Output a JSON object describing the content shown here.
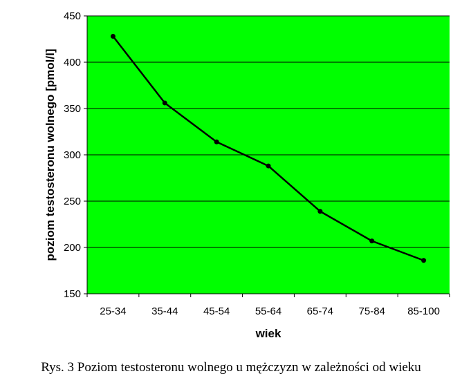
{
  "caption": "Rys. 3 Poziom testosteronu wolnego u mężczyzn w zależności od wieku",
  "colors": {
    "plot_background": "#00ff00",
    "line": "#000000",
    "grid": "#000000"
  },
  "chart_data": {
    "type": "line",
    "title": "",
    "xlabel": "wiek",
    "ylabel": "poziom testosteronu wolnego [pmol/l]",
    "categories": [
      "25-34",
      "35-44",
      "45-54",
      "55-64",
      "65-74",
      "75-84",
      "85-100"
    ],
    "series": [
      {
        "values": [
          428,
          356,
          314,
          288,
          239,
          207,
          186
        ]
      }
    ],
    "ylim": [
      150,
      450
    ],
    "yticks": [
      150,
      200,
      250,
      300,
      350,
      400,
      450
    ],
    "grid": true,
    "legend": "none"
  }
}
